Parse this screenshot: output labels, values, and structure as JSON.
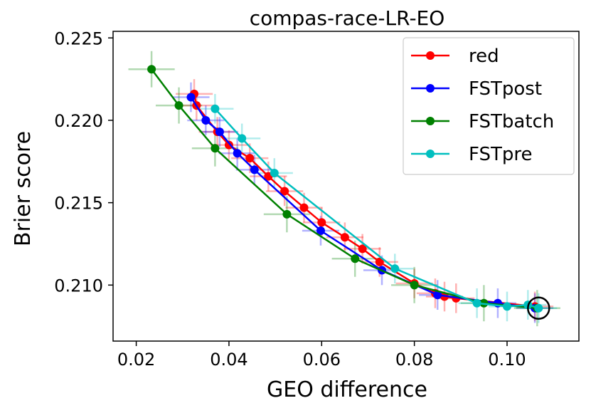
{
  "chart_data": {
    "type": "line",
    "title": "compas-race-LR-EO",
    "xlabel": "GEO difference",
    "ylabel": "Brier score",
    "xlim": [
      0.015,
      0.1155
    ],
    "ylim": [
      0.2066,
      0.2254
    ],
    "xticks": [
      {
        "value": 0.02,
        "label": "0.02"
      },
      {
        "value": 0.04,
        "label": "0.04"
      },
      {
        "value": 0.06,
        "label": "0.06"
      },
      {
        "value": 0.08,
        "label": "0.08"
      },
      {
        "value": 0.1,
        "label": "0.10"
      }
    ],
    "yticks": [
      {
        "value": 0.21,
        "label": "0.210"
      },
      {
        "value": 0.215,
        "label": "0.215"
      },
      {
        "value": 0.22,
        "label": "0.220"
      },
      {
        "value": 0.225,
        "label": "0.225"
      }
    ],
    "grid": false,
    "legend_position": "top-right",
    "highlight_point": {
      "x": 0.1068,
      "y": 0.2086
    },
    "series": [
      {
        "name": "red",
        "color": "#ff0000",
        "points": [
          {
            "x": 0.0325,
            "y": 0.2216
          },
          {
            "x": 0.033,
            "y": 0.2209
          },
          {
            "x": 0.0375,
            "y": 0.2193
          },
          {
            "x": 0.04,
            "y": 0.2185
          },
          {
            "x": 0.0445,
            "y": 0.2177
          },
          {
            "x": 0.0485,
            "y": 0.2166
          },
          {
            "x": 0.052,
            "y": 0.2157
          },
          {
            "x": 0.0562,
            "y": 0.2147
          },
          {
            "x": 0.06,
            "y": 0.2138
          },
          {
            "x": 0.065,
            "y": 0.2129
          },
          {
            "x": 0.0688,
            "y": 0.2122
          },
          {
            "x": 0.0725,
            "y": 0.2114
          },
          {
            "x": 0.08,
            "y": 0.2101
          },
          {
            "x": 0.0845,
            "y": 0.2095
          },
          {
            "x": 0.0865,
            "y": 0.2093
          },
          {
            "x": 0.089,
            "y": 0.2092
          },
          {
            "x": 0.106,
            "y": 0.2087
          }
        ],
        "xerr": 0.004,
        "yerr": 0.0009
      },
      {
        "name": "FSTpost",
        "color": "#0000ff",
        "points": [
          {
            "x": 0.0318,
            "y": 0.2214
          },
          {
            "x": 0.035,
            "y": 0.22
          },
          {
            "x": 0.038,
            "y": 0.2193
          },
          {
            "x": 0.0418,
            "y": 0.218
          },
          {
            "x": 0.0455,
            "y": 0.217
          },
          {
            "x": 0.0598,
            "y": 0.2133
          },
          {
            "x": 0.073,
            "y": 0.2109
          },
          {
            "x": 0.085,
            "y": 0.2094
          },
          {
            "x": 0.098,
            "y": 0.2089
          },
          {
            "x": 0.106,
            "y": 0.2086
          }
        ],
        "xerr": 0.004,
        "yerr": 0.0009
      },
      {
        "name": "FSTbatch",
        "color": "#008000",
        "points": [
          {
            "x": 0.0233,
            "y": 0.2231
          },
          {
            "x": 0.0292,
            "y": 0.2209
          },
          {
            "x": 0.037,
            "y": 0.2183
          },
          {
            "x": 0.0525,
            "y": 0.2143
          },
          {
            "x": 0.0672,
            "y": 0.2116
          },
          {
            "x": 0.08,
            "y": 0.21
          },
          {
            "x": 0.095,
            "y": 0.2089
          },
          {
            "x": 0.1065,
            "y": 0.2086
          }
        ],
        "xerr": 0.005,
        "yerr": 0.0011
      },
      {
        "name": "FSTpre",
        "color": "#00bfbf",
        "points": [
          {
            "x": 0.037,
            "y": 0.2207
          },
          {
            "x": 0.0428,
            "y": 0.2189
          },
          {
            "x": 0.0498,
            "y": 0.2168
          },
          {
            "x": 0.0758,
            "y": 0.211
          },
          {
            "x": 0.0935,
            "y": 0.2089
          },
          {
            "x": 0.1,
            "y": 0.2087
          },
          {
            "x": 0.1045,
            "y": 0.2088
          },
          {
            "x": 0.1068,
            "y": 0.2086
          }
        ],
        "xerr": 0.004,
        "yerr": 0.0009
      }
    ]
  }
}
